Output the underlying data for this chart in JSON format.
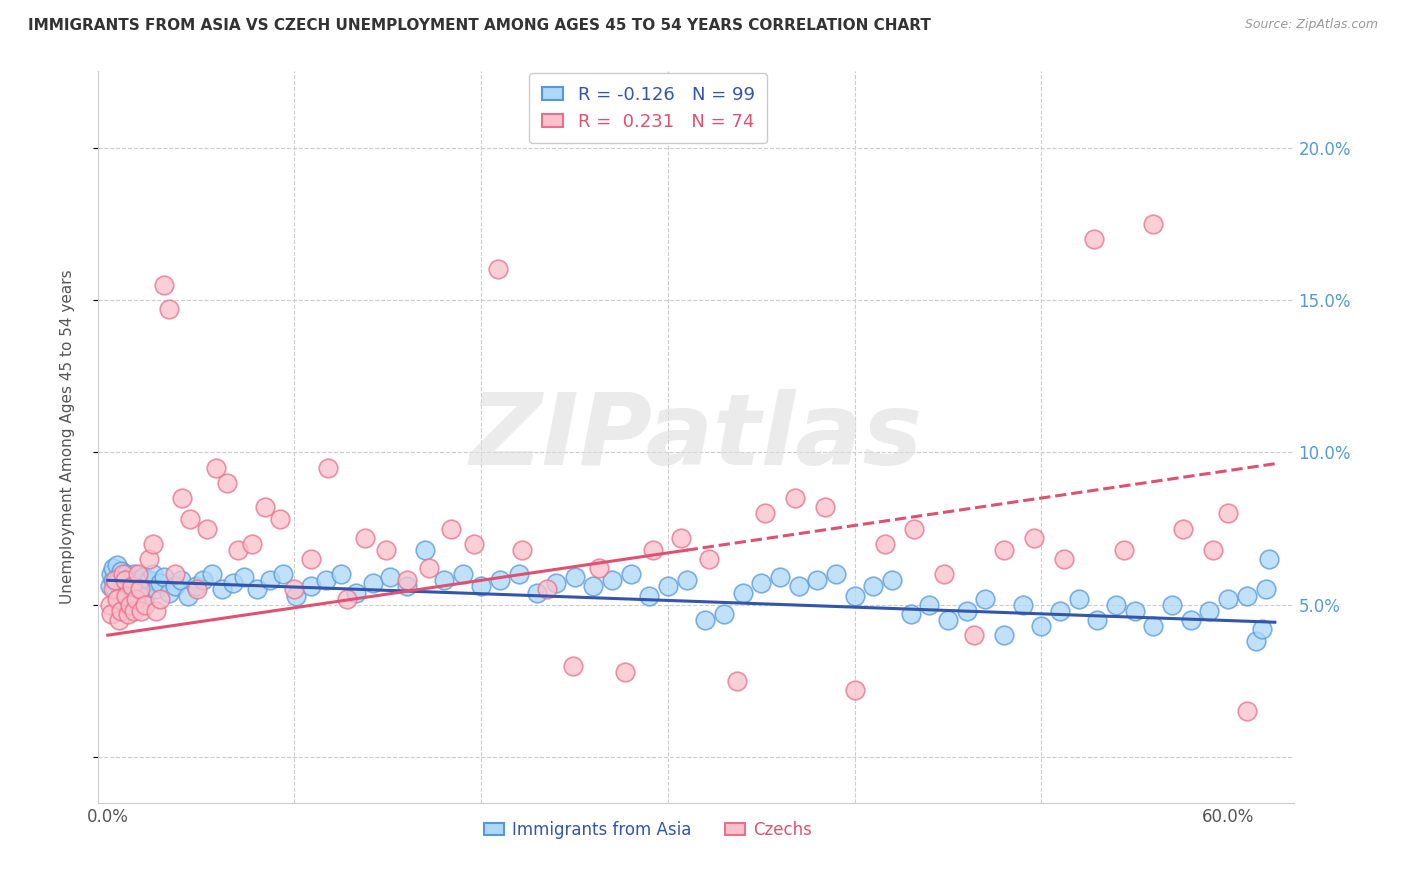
{
  "title": "IMMIGRANTS FROM ASIA VS CZECH UNEMPLOYMENT AMONG AGES 45 TO 54 YEARS CORRELATION CHART",
  "source": "Source: ZipAtlas.com",
  "ylabel": "Unemployment Among Ages 45 to 54 years",
  "y_ticks": [
    0.0,
    0.05,
    0.1,
    0.15,
    0.2
  ],
  "y_tick_labels": [
    "",
    "5.0%",
    "10.0%",
    "15.0%",
    "20.0%"
  ],
  "x_ticks": [
    0.0,
    0.1,
    0.2,
    0.3,
    0.4,
    0.5,
    0.6
  ],
  "x_tick_labels_show": [
    "0.0%",
    "",
    "",
    "",
    "",
    "",
    "60.0%"
  ],
  "xlim": [
    -0.005,
    0.635
  ],
  "ylim": [
    -0.015,
    0.225
  ],
  "series1_label": "Immigrants from Asia",
  "series1_facecolor": "#ADD8F7",
  "series1_edgecolor": "#5599DD",
  "series1_R": -0.126,
  "series1_N": 99,
  "series1_line_color": "#3355AA",
  "series2_label": "Czechs",
  "series2_facecolor": "#FAC0CC",
  "series2_edgecolor": "#E8708A",
  "series2_R": 0.231,
  "series2_N": 74,
  "series2_line_color": "#E05070",
  "watermark_text": "ZIPatlas",
  "watermark_color": "#DEDEDE",
  "background_color": "#ffffff",
  "grid_color": "#CCCCCC",
  "right_tick_color": "#5599DD",
  "legend_box_color": "#CCCCCC",
  "series1_x": [
    0.001,
    0.002,
    0.003,
    0.003,
    0.004,
    0.005,
    0.005,
    0.006,
    0.007,
    0.007,
    0.008,
    0.009,
    0.01,
    0.01,
    0.011,
    0.012,
    0.013,
    0.014,
    0.015,
    0.016,
    0.017,
    0.018,
    0.019,
    0.02,
    0.022,
    0.024,
    0.026,
    0.028,
    0.03,
    0.033,
    0.036,
    0.039,
    0.043,
    0.047,
    0.051,
    0.056,
    0.061,
    0.067,
    0.073,
    0.08,
    0.087,
    0.094,
    0.101,
    0.109,
    0.117,
    0.125,
    0.133,
    0.142,
    0.151,
    0.16,
    0.17,
    0.18,
    0.19,
    0.2,
    0.21,
    0.22,
    0.23,
    0.24,
    0.25,
    0.26,
    0.27,
    0.28,
    0.29,
    0.3,
    0.31,
    0.32,
    0.33,
    0.34,
    0.35,
    0.36,
    0.37,
    0.38,
    0.39,
    0.4,
    0.41,
    0.42,
    0.43,
    0.44,
    0.45,
    0.46,
    0.47,
    0.48,
    0.49,
    0.5,
    0.51,
    0.52,
    0.53,
    0.54,
    0.55,
    0.56,
    0.57,
    0.58,
    0.59,
    0.6,
    0.61,
    0.615,
    0.618,
    0.62,
    0.622
  ],
  "series1_y": [
    0.056,
    0.06,
    0.058,
    0.062,
    0.055,
    0.057,
    0.063,
    0.059,
    0.053,
    0.061,
    0.056,
    0.058,
    0.054,
    0.06,
    0.057,
    0.059,
    0.056,
    0.06,
    0.055,
    0.058,
    0.057,
    0.055,
    0.059,
    0.053,
    0.058,
    0.06,
    0.055,
    0.057,
    0.059,
    0.054,
    0.056,
    0.058,
    0.053,
    0.056,
    0.058,
    0.06,
    0.055,
    0.057,
    0.059,
    0.055,
    0.058,
    0.06,
    0.053,
    0.056,
    0.058,
    0.06,
    0.054,
    0.057,
    0.059,
    0.056,
    0.068,
    0.058,
    0.06,
    0.056,
    0.058,
    0.06,
    0.054,
    0.057,
    0.059,
    0.056,
    0.058,
    0.06,
    0.053,
    0.056,
    0.058,
    0.045,
    0.047,
    0.054,
    0.057,
    0.059,
    0.056,
    0.058,
    0.06,
    0.053,
    0.056,
    0.058,
    0.047,
    0.05,
    0.045,
    0.048,
    0.052,
    0.04,
    0.05,
    0.043,
    0.048,
    0.052,
    0.045,
    0.05,
    0.048,
    0.043,
    0.05,
    0.045,
    0.048,
    0.052,
    0.053,
    0.038,
    0.042,
    0.055,
    0.065
  ],
  "series2_x": [
    0.001,
    0.002,
    0.003,
    0.004,
    0.005,
    0.006,
    0.007,
    0.008,
    0.009,
    0.01,
    0.011,
    0.012,
    0.013,
    0.014,
    0.015,
    0.016,
    0.017,
    0.018,
    0.02,
    0.022,
    0.024,
    0.026,
    0.028,
    0.03,
    0.033,
    0.036,
    0.04,
    0.044,
    0.048,
    0.053,
    0.058,
    0.064,
    0.07,
    0.077,
    0.084,
    0.092,
    0.1,
    0.109,
    0.118,
    0.128,
    0.138,
    0.149,
    0.16,
    0.172,
    0.184,
    0.196,
    0.209,
    0.222,
    0.235,
    0.249,
    0.263,
    0.277,
    0.292,
    0.307,
    0.322,
    0.337,
    0.352,
    0.368,
    0.384,
    0.4,
    0.416,
    0.432,
    0.448,
    0.464,
    0.48,
    0.496,
    0.512,
    0.528,
    0.544,
    0.56,
    0.576,
    0.592,
    0.6,
    0.61
  ],
  "series2_y": [
    0.05,
    0.047,
    0.055,
    0.058,
    0.052,
    0.045,
    0.048,
    0.06,
    0.058,
    0.053,
    0.047,
    0.05,
    0.056,
    0.048,
    0.052,
    0.06,
    0.055,
    0.048,
    0.05,
    0.065,
    0.07,
    0.048,
    0.052,
    0.155,
    0.147,
    0.06,
    0.085,
    0.078,
    0.055,
    0.075,
    0.095,
    0.09,
    0.068,
    0.07,
    0.082,
    0.078,
    0.055,
    0.065,
    0.095,
    0.052,
    0.072,
    0.068,
    0.058,
    0.062,
    0.075,
    0.07,
    0.16,
    0.068,
    0.055,
    0.03,
    0.062,
    0.028,
    0.068,
    0.072,
    0.065,
    0.025,
    0.08,
    0.085,
    0.082,
    0.022,
    0.07,
    0.075,
    0.06,
    0.04,
    0.068,
    0.072,
    0.065,
    0.17,
    0.068,
    0.175,
    0.075,
    0.068,
    0.08,
    0.015
  ],
  "trend1_intercept": 0.058,
  "trend1_slope": -0.022,
  "trend2_intercept": 0.04,
  "trend2_slope": 0.09
}
